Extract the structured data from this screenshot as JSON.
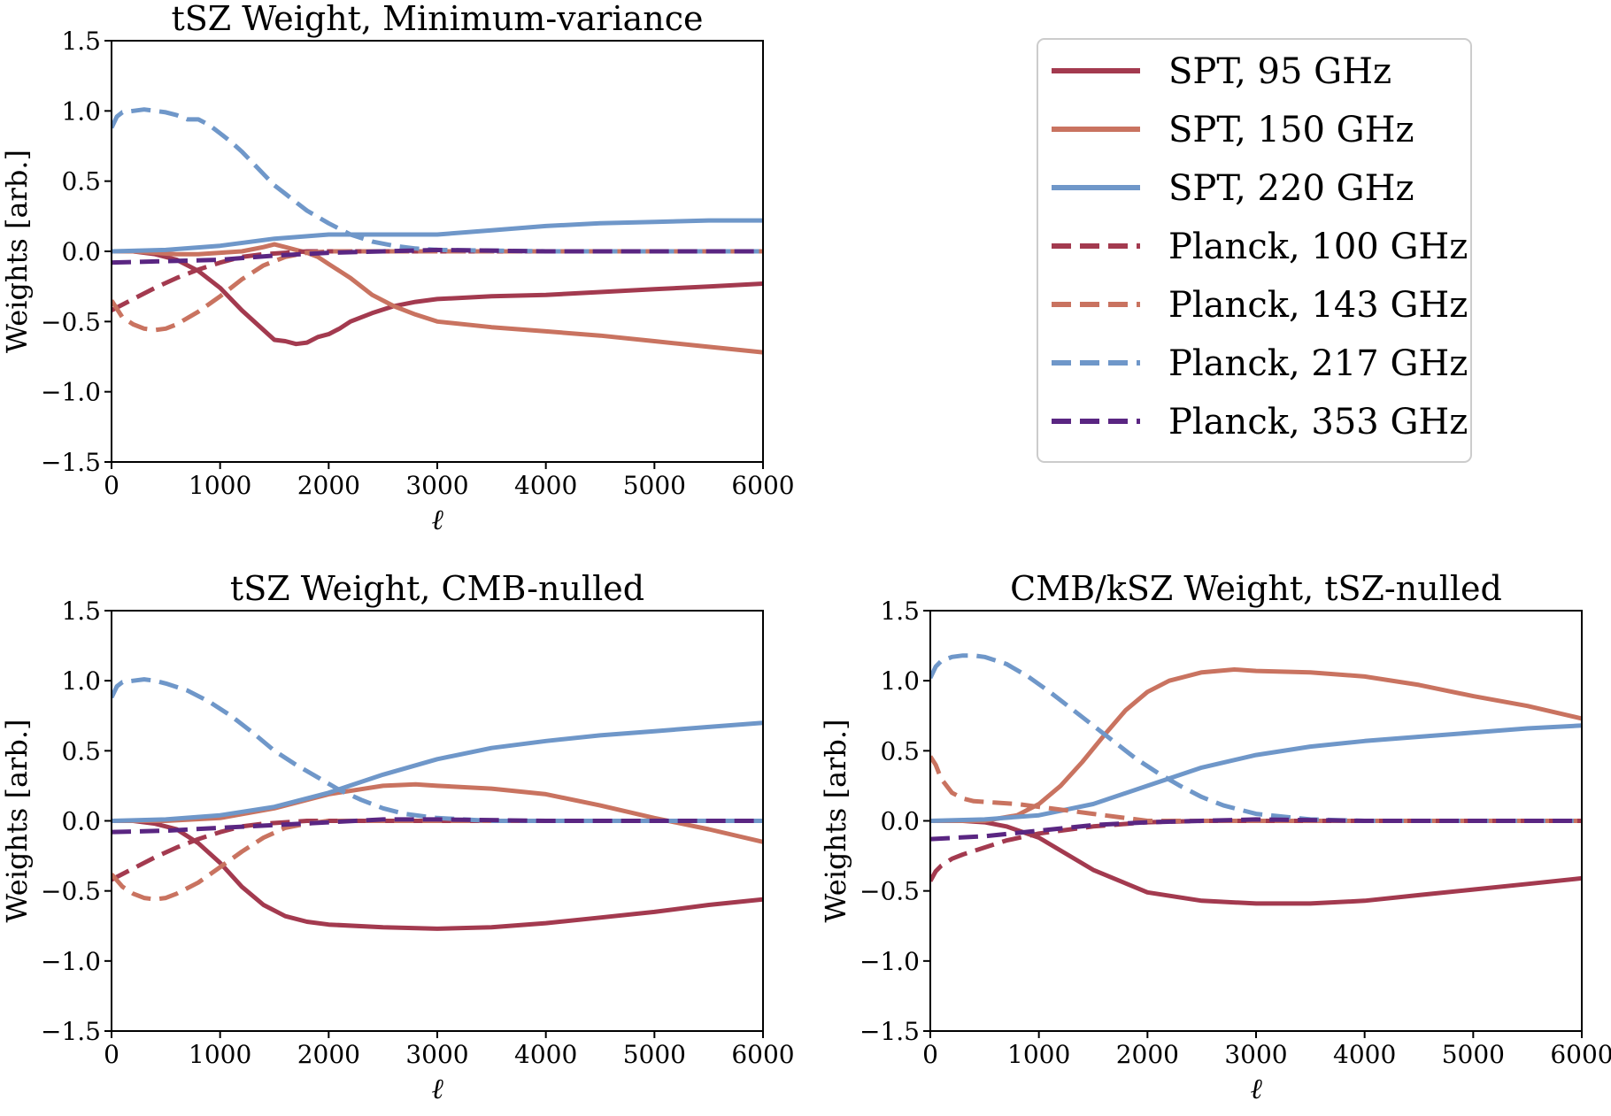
{
  "chart_data": [
    {
      "type": "line",
      "title": "tSZ Weight, Minimum-variance",
      "xlabel": "ℓ",
      "ylabel": "Weights [arb.]",
      "xlim": [
        0,
        6000
      ],
      "ylim": [
        -1.5,
        1.5
      ],
      "xticks": [
        "0",
        "1000",
        "2000",
        "3000",
        "4000",
        "5000",
        "6000"
      ],
      "yticks": [
        "−1.5",
        "−1.0",
        "−0.5",
        "0.0",
        "0.5",
        "1.0",
        "1.5"
      ],
      "grid": false,
      "series": [
        {
          "name": "SPT, 95 GHz",
          "x": [
            0,
            200,
            400,
            600,
            800,
            1000,
            1200,
            1400,
            1500,
            1600,
            1700,
            1800,
            1900,
            2000,
            2100,
            2200,
            2400,
            2600,
            2800,
            3000,
            3500,
            4000,
            4500,
            5000,
            5500,
            6000
          ],
          "y": [
            0,
            0,
            -0.02,
            -0.06,
            -0.14,
            -0.26,
            -0.42,
            -0.56,
            -0.63,
            -0.64,
            -0.66,
            -0.65,
            -0.61,
            -0.59,
            -0.55,
            -0.5,
            -0.44,
            -0.39,
            -0.36,
            -0.34,
            -0.32,
            -0.31,
            -0.29,
            -0.27,
            -0.25,
            -0.23
          ]
        },
        {
          "name": "SPT, 150 GHz",
          "x": [
            0,
            200,
            400,
            600,
            800,
            1000,
            1200,
            1400,
            1500,
            1600,
            1700,
            1800,
            1900,
            2000,
            2100,
            2200,
            2400,
            2600,
            2800,
            3000,
            3500,
            4000,
            4500,
            5000,
            5500,
            6000
          ],
          "y": [
            0,
            0,
            -0.01,
            -0.02,
            -0.02,
            -0.01,
            0,
            0.03,
            0.05,
            0.03,
            0.01,
            -0.01,
            -0.04,
            -0.09,
            -0.14,
            -0.19,
            -0.31,
            -0.39,
            -0.45,
            -0.5,
            -0.54,
            -0.57,
            -0.6,
            -0.64,
            -0.68,
            -0.72
          ]
        },
        {
          "name": "SPT, 220 GHz",
          "x": [
            0,
            500,
            1000,
            1500,
            2000,
            2500,
            3000,
            3500,
            4000,
            4500,
            5000,
            5500,
            6000
          ],
          "y": [
            0,
            0.01,
            0.04,
            0.09,
            0.12,
            0.12,
            0.12,
            0.15,
            0.18,
            0.2,
            0.21,
            0.22,
            0.22
          ]
        },
        {
          "name": "Planck, 100 GHz",
          "x": [
            0,
            200,
            400,
            600,
            800,
            1000,
            1200,
            1400,
            1600,
            1800,
            2000,
            2500,
            3000,
            4000,
            5000,
            6000
          ],
          "y": [
            -0.42,
            -0.34,
            -0.26,
            -0.19,
            -0.13,
            -0.08,
            -0.04,
            -0.02,
            -0.01,
            0,
            0,
            0,
            0,
            0,
            0,
            0
          ]
        },
        {
          "name": "Planck, 143 GHz",
          "x": [
            0,
            100,
            200,
            300,
            400,
            500,
            600,
            800,
            1000,
            1200,
            1400,
            1600,
            1800,
            2000,
            2500,
            3000,
            4000,
            5000,
            6000
          ],
          "y": [
            -0.35,
            -0.47,
            -0.52,
            -0.55,
            -0.56,
            -0.55,
            -0.52,
            -0.43,
            -0.32,
            -0.2,
            -0.1,
            -0.04,
            -0.01,
            0,
            0,
            0,
            0,
            0,
            0
          ]
        },
        {
          "name": "Planck, 217 GHz",
          "x": [
            0,
            50,
            100,
            200,
            300,
            400,
            500,
            600,
            700,
            800,
            900,
            1000,
            1100,
            1200,
            1300,
            1400,
            1500,
            1600,
            1700,
            1800,
            2000,
            2200,
            2400,
            2600,
            2800,
            3000,
            4000,
            5000,
            6000
          ],
          "y": [
            0.88,
            0.96,
            0.99,
            1.0,
            1.01,
            1.0,
            0.99,
            0.97,
            0.94,
            0.94,
            0.9,
            0.84,
            0.78,
            0.71,
            0.63,
            0.55,
            0.47,
            0.41,
            0.35,
            0.29,
            0.2,
            0.12,
            0.07,
            0.04,
            0.02,
            0.01,
            0,
            0,
            0
          ]
        },
        {
          "name": "Planck, 353 GHz",
          "x": [
            0,
            500,
            1000,
            1500,
            2000,
            2500,
            3000,
            4000,
            5000,
            6000
          ],
          "y": [
            -0.08,
            -0.07,
            -0.06,
            -0.03,
            -0.01,
            0,
            0.01,
            0,
            0,
            0
          ]
        }
      ]
    },
    {
      "type": "line",
      "title": "tSZ Weight, CMB-nulled",
      "xlabel": "ℓ",
      "ylabel": "Weights [arb.]",
      "xlim": [
        0,
        6000
      ],
      "ylim": [
        -1.5,
        1.5
      ],
      "xticks": [
        "0",
        "1000",
        "2000",
        "3000",
        "4000",
        "5000",
        "6000"
      ],
      "yticks": [
        "−1.5",
        "−1.0",
        "−0.5",
        "0.0",
        "0.5",
        "1.0",
        "1.5"
      ],
      "grid": false,
      "series": [
        {
          "name": "SPT, 95 GHz",
          "x": [
            0,
            200,
            400,
            600,
            800,
            1000,
            1200,
            1400,
            1600,
            1800,
            2000,
            2500,
            3000,
            3500,
            4000,
            4500,
            5000,
            5500,
            6000
          ],
          "y": [
            0,
            0,
            -0.02,
            -0.06,
            -0.16,
            -0.3,
            -0.47,
            -0.6,
            -0.68,
            -0.72,
            -0.74,
            -0.76,
            -0.77,
            -0.76,
            -0.73,
            -0.69,
            -0.65,
            -0.6,
            -0.56
          ]
        },
        {
          "name": "SPT, 150 GHz",
          "x": [
            0,
            500,
            1000,
            1500,
            2000,
            2500,
            2800,
            3000,
            3500,
            4000,
            4500,
            5000,
            5500,
            6000
          ],
          "y": [
            0,
            0,
            0.02,
            0.09,
            0.19,
            0.25,
            0.26,
            0.25,
            0.23,
            0.19,
            0.11,
            0.02,
            -0.06,
            -0.15
          ]
        },
        {
          "name": "SPT, 220 GHz",
          "x": [
            0,
            500,
            1000,
            1500,
            2000,
            2500,
            3000,
            3500,
            4000,
            4500,
            5000,
            5500,
            6000
          ],
          "y": [
            0,
            0.01,
            0.04,
            0.1,
            0.2,
            0.33,
            0.44,
            0.52,
            0.57,
            0.61,
            0.64,
            0.67,
            0.7
          ]
        },
        {
          "name": "Planck, 100 GHz",
          "x": [
            0,
            200,
            400,
            600,
            800,
            1000,
            1200,
            1400,
            1600,
            1800,
            2000,
            2500,
            3000,
            4000,
            5000,
            6000
          ],
          "y": [
            -0.42,
            -0.34,
            -0.26,
            -0.19,
            -0.13,
            -0.08,
            -0.04,
            -0.02,
            -0.01,
            0,
            0,
            0,
            0,
            0,
            0,
            0
          ]
        },
        {
          "name": "Planck, 143 GHz",
          "x": [
            0,
            100,
            200,
            300,
            400,
            500,
            600,
            800,
            1000,
            1200,
            1400,
            1600,
            1800,
            2000,
            2500,
            3000,
            4000,
            5000,
            6000
          ],
          "y": [
            -0.38,
            -0.47,
            -0.52,
            -0.55,
            -0.56,
            -0.55,
            -0.52,
            -0.44,
            -0.33,
            -0.22,
            -0.12,
            -0.05,
            -0.02,
            0,
            0,
            0,
            0,
            0,
            0
          ]
        },
        {
          "name": "Planck, 217 GHz",
          "x": [
            0,
            50,
            100,
            200,
            300,
            400,
            500,
            700,
            900,
            1100,
            1300,
            1500,
            1700,
            1900,
            2100,
            2300,
            2500,
            2700,
            3000,
            3500,
            4000,
            5000,
            6000
          ],
          "y": [
            0.88,
            0.96,
            0.99,
            1.0,
            1.01,
            1.0,
            0.98,
            0.93,
            0.85,
            0.75,
            0.63,
            0.5,
            0.4,
            0.31,
            0.22,
            0.15,
            0.09,
            0.05,
            0.02,
            0,
            0,
            0,
            0
          ]
        },
        {
          "name": "Planck, 353 GHz",
          "x": [
            0,
            500,
            1000,
            1500,
            2000,
            2500,
            3000,
            4000,
            5000,
            6000
          ],
          "y": [
            -0.08,
            -0.07,
            -0.05,
            -0.03,
            -0.01,
            0.01,
            0.01,
            0,
            0,
            0
          ]
        }
      ]
    },
    {
      "type": "line",
      "title": "CMB/kSZ Weight, tSZ-nulled",
      "xlabel": "ℓ",
      "ylabel": "Weights [arb.]",
      "xlim": [
        0,
        6000
      ],
      "ylim": [
        -1.5,
        1.5
      ],
      "xticks": [
        "0",
        "1000",
        "2000",
        "3000",
        "4000",
        "5000",
        "6000"
      ],
      "yticks": [
        "−1.5",
        "−1.0",
        "−0.5",
        "0.0",
        "0.5",
        "1.0",
        "1.5"
      ],
      "grid": false,
      "series": [
        {
          "name": "SPT, 95 GHz",
          "x": [
            0,
            300,
            500,
            700,
            1000,
            1500,
            2000,
            2500,
            3000,
            3500,
            4000,
            4500,
            5000,
            5500,
            6000
          ],
          "y": [
            0,
            0,
            -0.01,
            -0.04,
            -0.12,
            -0.35,
            -0.51,
            -0.57,
            -0.59,
            -0.59,
            -0.57,
            -0.53,
            -0.49,
            -0.45,
            -0.41
          ]
        },
        {
          "name": "SPT, 150 GHz",
          "x": [
            0,
            500,
            800,
            1000,
            1200,
            1400,
            1600,
            1800,
            2000,
            2200,
            2500,
            2800,
            3000,
            3500,
            4000,
            4500,
            5000,
            5500,
            6000
          ],
          "y": [
            0,
            0,
            0.04,
            0.12,
            0.25,
            0.42,
            0.61,
            0.79,
            0.92,
            1.0,
            1.06,
            1.08,
            1.07,
            1.06,
            1.03,
            0.97,
            0.89,
            0.82,
            0.73
          ]
        },
        {
          "name": "SPT, 220 GHz",
          "x": [
            0,
            500,
            1000,
            1500,
            2000,
            2500,
            3000,
            3500,
            4000,
            4500,
            5000,
            5500,
            6000
          ],
          "y": [
            0,
            0.01,
            0.04,
            0.12,
            0.25,
            0.38,
            0.47,
            0.53,
            0.57,
            0.6,
            0.63,
            0.66,
            0.68
          ]
        },
        {
          "name": "Planck, 100 GHz",
          "x": [
            0,
            50,
            100,
            200,
            300,
            500,
            700,
            1000,
            1500,
            2000,
            2500,
            3000,
            4000,
            5000,
            6000
          ],
          "y": [
            -0.43,
            -0.36,
            -0.32,
            -0.27,
            -0.24,
            -0.19,
            -0.14,
            -0.09,
            -0.04,
            -0.01,
            0,
            0,
            0,
            0,
            0
          ]
        },
        {
          "name": "Planck, 143 GHz",
          "x": [
            0,
            50,
            100,
            200,
            300,
            400,
            600,
            800,
            1000,
            1200,
            1500,
            1800,
            2000,
            2500,
            3000,
            4000,
            5000,
            6000
          ],
          "y": [
            0.46,
            0.4,
            0.3,
            0.2,
            0.16,
            0.14,
            0.13,
            0.12,
            0.1,
            0.08,
            0.05,
            0.02,
            0,
            0,
            0,
            0,
            0,
            0
          ]
        },
        {
          "name": "Planck, 217 GHz",
          "x": [
            0,
            50,
            100,
            200,
            300,
            400,
            500,
            700,
            900,
            1100,
            1300,
            1500,
            1700,
            1900,
            2100,
            2300,
            2500,
            2700,
            3000,
            3500,
            4000,
            5000,
            6000
          ],
          "y": [
            1.02,
            1.1,
            1.14,
            1.17,
            1.18,
            1.18,
            1.17,
            1.12,
            1.03,
            0.92,
            0.8,
            0.68,
            0.56,
            0.44,
            0.34,
            0.25,
            0.17,
            0.11,
            0.05,
            0.01,
            0,
            0,
            0
          ]
        },
        {
          "name": "Planck, 353 GHz",
          "x": [
            0,
            500,
            1000,
            1500,
            2000,
            2500,
            3000,
            4000,
            5000,
            6000
          ],
          "y": [
            -0.13,
            -0.11,
            -0.07,
            -0.03,
            -0.01,
            0,
            0.01,
            0,
            0,
            0
          ]
        }
      ]
    }
  ],
  "legend": {
    "placement": "top-right",
    "items": [
      {
        "label": "SPT, 95 GHz",
        "color": "#a33a4f",
        "style": "solid"
      },
      {
        "label": "SPT, 150 GHz",
        "color": "#c97360",
        "style": "solid"
      },
      {
        "label": "SPT, 220 GHz",
        "color": "#6f97c9",
        "style": "solid"
      },
      {
        "label": "Planck, 100 GHz",
        "color": "#a33a4f",
        "style": "dashed"
      },
      {
        "label": "Planck, 143 GHz",
        "color": "#c97360",
        "style": "dashed"
      },
      {
        "label": "Planck, 217 GHz",
        "color": "#6f97c9",
        "style": "dashed"
      },
      {
        "label": "Planck, 353 GHz",
        "color": "#5a2682",
        "style": "dashed"
      }
    ]
  }
}
